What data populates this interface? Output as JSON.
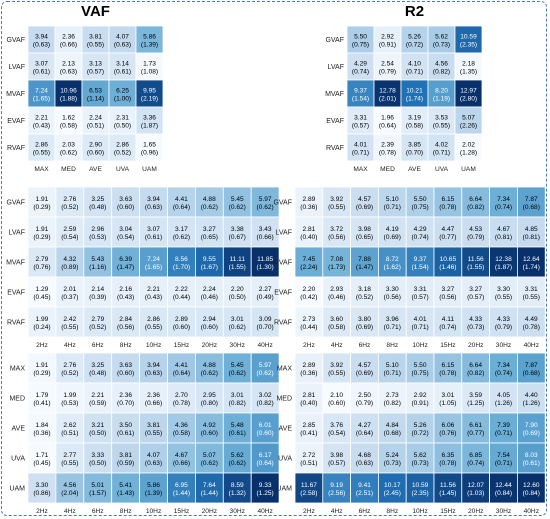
{
  "colors": {
    "low": "#ffffff",
    "high": "#08306b",
    "grid": "#ffffff",
    "frame": "#4a78c2"
  },
  "chart_data": [
    {
      "type": "heatmap",
      "title": "VAF",
      "rows": [
        "GVAF",
        "LVAF",
        "MVAF",
        "EVAF",
        "RVAF"
      ],
      "cols": [
        "MAX",
        "MED",
        "AVE",
        "UVA",
        "UAM"
      ],
      "values": [
        [
          3.94,
          2.36,
          3.81,
          4.07,
          5.86
        ],
        [
          3.07,
          2.13,
          3.13,
          3.14,
          1.73
        ],
        [
          7.24,
          10.96,
          6.53,
          6.25,
          9.95
        ],
        [
          2.21,
          1.62,
          2.24,
          2.31,
          3.36
        ],
        [
          2.86,
          2.03,
          2.9,
          2.86,
          1.65
        ]
      ],
      "sd": [
        [
          "0.63",
          "0.66",
          "0.55",
          "0.63",
          "1.39"
        ],
        [
          "0.61",
          "0.63",
          "0.57",
          "0.61",
          "1.08"
        ],
        [
          "1.65",
          "1.88",
          "1.14",
          "1.00",
          "2.19"
        ],
        [
          "0.43",
          "0.58",
          "0.51",
          "0.50",
          "1.87"
        ],
        [
          "0.55",
          "0.62",
          "0.60",
          "0.52",
          "0.96"
        ]
      ]
    },
    {
      "type": "heatmap",
      "title": "R2",
      "rows": [
        "GVAF",
        "LVAF",
        "MVAF",
        "EVAF",
        "RVAF"
      ],
      "cols": [
        "MAX",
        "MED",
        "AVE",
        "UVA",
        "UAM"
      ],
      "values": [
        [
          5.5,
          2.92,
          5.26,
          5.62,
          10.59
        ],
        [
          4.29,
          2.54,
          4.1,
          4.56,
          2.18
        ],
        [
          9.37,
          12.78,
          10.21,
          8.2,
          12.97
        ],
        [
          3.31,
          1.96,
          3.19,
          3.53,
          5.07
        ],
        [
          4.01,
          2.39,
          3.85,
          4.02,
          2.02
        ]
      ],
      "sd": [
        [
          "0.75",
          "0.91",
          "0.72",
          "0.73",
          "2.35"
        ],
        [
          "0.74",
          "0.79",
          "0.71",
          "0.82",
          "1.35"
        ],
        [
          "1.54",
          "2.01",
          "1.74",
          "1.19",
          "2.80"
        ],
        [
          "0.57",
          "0.64",
          "0.58",
          "0.55",
          "2.26"
        ],
        [
          "0.71",
          "0.78",
          "0.70",
          "0.71",
          "1.28"
        ]
      ]
    },
    {
      "type": "heatmap",
      "title": "",
      "rows": [
        "GVAF",
        "LVAF",
        "MVAF",
        "EVAF",
        "RVAF"
      ],
      "cols": [
        "2Hz",
        "4Hz",
        "6Hz",
        "8Hz",
        "10Hz",
        "15Hz",
        "20Hz",
        "30Hz",
        "40Hz"
      ],
      "values": [
        [
          1.91,
          2.76,
          3.25,
          3.63,
          3.94,
          4.41,
          4.88,
          5.45,
          5.97
        ],
        [
          1.91,
          2.59,
          2.96,
          3.04,
          3.07,
          3.17,
          3.27,
          3.38,
          3.43
        ],
        [
          2.79,
          4.32,
          5.43,
          6.39,
          7.24,
          8.56,
          9.55,
          11.11,
          11.85
        ],
        [
          1.29,
          2.01,
          2.14,
          2.16,
          2.21,
          2.22,
          2.24,
          2.2,
          2.27
        ],
        [
          1.99,
          2.42,
          2.79,
          2.84,
          2.86,
          2.89,
          2.94,
          3.01,
          3.09
        ]
      ],
      "sd": [
        [
          "0.29",
          "0.52",
          "0.48",
          "0.60",
          "0.63",
          "0.64",
          "0.62",
          "0.62",
          "0.62"
        ],
        [
          "0.29",
          "0.54",
          "0.53",
          "0.54",
          "0.61",
          "0.62",
          "0.65",
          "0.67",
          "0.66"
        ],
        [
          "0.76",
          "0.89",
          "1.16",
          "1.47",
          "1.65",
          "1.70",
          "1.67",
          "1.55",
          "1.30"
        ],
        [
          "0.45",
          "0.37",
          "0.39",
          "0.43",
          "0.43",
          "0.44",
          "0.46",
          "0.50",
          "0.49"
        ],
        [
          "0.24",
          "0.55",
          "0.52",
          "0.56",
          "0.55",
          "0.60",
          "0.60",
          "0.62",
          "0.70"
        ]
      ]
    },
    {
      "type": "heatmap",
      "title": "",
      "rows": [
        "GVAF",
        "LVAF",
        "MVAF",
        "EVAF",
        "RVAF"
      ],
      "cols": [
        "2Hz",
        "4Hz",
        "6Hz",
        "8Hz",
        "10Hz",
        "15Hz",
        "20Hz",
        "30Hz",
        "40Hz"
      ],
      "values": [
        [
          2.89,
          3.92,
          4.57,
          5.1,
          5.5,
          6.15,
          6.64,
          7.34,
          7.87
        ],
        [
          2.81,
          3.72,
          3.98,
          4.19,
          4.29,
          4.47,
          4.53,
          4.67,
          4.85
        ],
        [
          7.45,
          7.08,
          7.88,
          8.72,
          9.37,
          10.65,
          11.56,
          12.38,
          12.64
        ],
        [
          2.2,
          2.93,
          3.18,
          3.3,
          3.31,
          3.27,
          3.27,
          3.3,
          3.31
        ],
        [
          2.73,
          3.6,
          3.8,
          3.96,
          4.01,
          4.11,
          4.33,
          4.33,
          4.49
        ]
      ],
      "sd": [
        [
          "0.36",
          "0.55",
          "0.69",
          "0.71",
          "0.75",
          "0.78",
          "0.82",
          "0.74",
          "0.68"
        ],
        [
          "0.40",
          "0.56",
          "0.65",
          "0.69",
          "0.74",
          "0.77",
          "0.79",
          "0.81",
          "0.81"
        ],
        [
          "2.24",
          "1.73",
          "1.47",
          "1.62",
          "1.54",
          "1.46",
          "1.55",
          "1.87",
          "1.74"
        ],
        [
          "0.42",
          "0.46",
          "0.52",
          "0.56",
          "0.57",
          "0.56",
          "0.57",
          "0.55",
          "0.55"
        ],
        [
          "0.44",
          "0.58",
          "0.69",
          "0.71",
          "0.71",
          "0.74",
          "0.73",
          "0.79",
          "0.78"
        ]
      ]
    },
    {
      "type": "heatmap",
      "title": "",
      "rows": [
        "MAX",
        "MED",
        "AVE",
        "UVA",
        "UAM"
      ],
      "cols": [
        "2Hz",
        "4Hz",
        "6Hz",
        "8Hz",
        "10Hz",
        "15Hz",
        "20Hz",
        "30Hz",
        "40Hz"
      ],
      "values": [
        [
          1.91,
          2.76,
          3.25,
          3.63,
          3.94,
          4.41,
          4.88,
          5.45,
          5.97
        ],
        [
          1.79,
          1.99,
          2.21,
          2.36,
          2.36,
          2.7,
          2.95,
          3.01,
          3.02
        ],
        [
          1.84,
          2.62,
          3.21,
          3.5,
          3.81,
          4.36,
          4.92,
          5.48,
          6.01
        ],
        [
          1.71,
          2.77,
          3.33,
          3.81,
          4.07,
          4.67,
          5.07,
          5.62,
          6.17
        ],
        [
          3.3,
          4.56,
          5.01,
          5.41,
          5.86,
          6.95,
          7.64,
          8.59,
          9.33
        ]
      ],
      "sd": [
        [
          "0.29",
          "0.52",
          "0.48",
          "0.60",
          "0.63",
          "0.64",
          "0.62",
          "0.62",
          "0.62"
        ],
        [
          "0.41",
          "0.53",
          "0.59",
          "0.70",
          "0.66",
          "0.78",
          "0.80",
          "0.82",
          "0.82"
        ],
        [
          "0.36",
          "0.51",
          "0.50",
          "0.61",
          "0.55",
          "0.58",
          "0.60",
          "0.61",
          "0.60"
        ],
        [
          "0.45",
          "0.55",
          "0.50",
          "0.59",
          "0.63",
          "0.66",
          "0.62",
          "0.62",
          "0.64"
        ],
        [
          "0.86",
          "2.04",
          "1.57",
          "1.43",
          "1.39",
          "1.44",
          "1.44",
          "1.32",
          "1.25"
        ]
      ]
    },
    {
      "type": "heatmap",
      "title": "",
      "rows": [
        "MAX",
        "MED",
        "AVE",
        "UVA",
        "UAM"
      ],
      "cols": [
        "2Hz",
        "4Hz",
        "6Hz",
        "8Hz",
        "10Hz",
        "15Hz",
        "20Hz",
        "30Hz",
        "40Hz"
      ],
      "values": [
        [
          2.89,
          3.92,
          4.57,
          5.1,
          5.5,
          6.15,
          6.64,
          7.34,
          7.87
        ],
        [
          2.81,
          2.1,
          2.5,
          2.73,
          2.92,
          3.01,
          3.59,
          4.05,
          4.4
        ],
        [
          2.85,
          3.76,
          4.27,
          4.84,
          5.26,
          6.06,
          6.61,
          7.39,
          7.9
        ],
        [
          2.72,
          3.98,
          4.68,
          5.24,
          5.62,
          6.35,
          6.85,
          7.54,
          8.03
        ],
        [
          11.67,
          9.19,
          9.41,
          10.17,
          10.59,
          11.56,
          12.07,
          12.44,
          12.6
        ]
      ],
      "sd": [
        [
          "0.36",
          "0.55",
          "0.69",
          "0.71",
          "0.75",
          "0.78",
          "0.82",
          "0.74",
          "0.68"
        ],
        [
          "0.40",
          "0.60",
          "0.79",
          "0.82",
          "0.91",
          "1.05",
          "1.25",
          "1.26",
          "1.26"
        ],
        [
          "0.41",
          "0.54",
          "0.64",
          "0.68",
          "0.72",
          "0.76",
          "0.77",
          "0.71",
          "0.69"
        ],
        [
          "0.51",
          "0.57",
          "0.63",
          "0.73",
          "0.73",
          "0.78",
          "0.74",
          "0.71",
          "0.61"
        ],
        [
          "2.58",
          "2.56",
          "2.51",
          "2.45",
          "2.35",
          "1.45",
          "1.03",
          "0.84",
          "0.84"
        ]
      ]
    }
  ]
}
